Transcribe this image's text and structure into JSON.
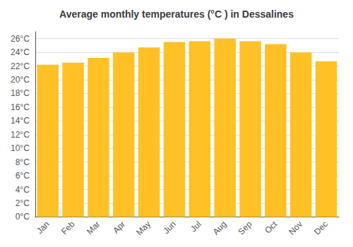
{
  "chart_data": {
    "type": "bar",
    "title": "Average monthly temperatures (°C ) in Dessalines",
    "categories": [
      "Jan",
      "Feb",
      "Mar",
      "Apr",
      "May",
      "Jun",
      "Jul",
      "Aug",
      "Sep",
      "Oct",
      "Nov",
      "Dec"
    ],
    "values": [
      22.2,
      22.5,
      23.2,
      24.0,
      24.7,
      25.5,
      25.6,
      26.0,
      25.6,
      25.2,
      24.0,
      22.7
    ],
    "color": "#FFC125",
    "ylim": [
      0,
      27
    ],
    "yticks": [
      {
        "value": 0,
        "label": "0°C"
      },
      {
        "value": 2,
        "label": "2°C"
      },
      {
        "value": 4,
        "label": "4°C"
      },
      {
        "value": 6,
        "label": "6°C"
      },
      {
        "value": 8,
        "label": "8°C"
      },
      {
        "value": 10,
        "label": "10°C"
      },
      {
        "value": 12,
        "label": "12°C"
      },
      {
        "value": 14,
        "label": "14°C"
      },
      {
        "value": 16,
        "label": "16°C"
      },
      {
        "value": 18,
        "label": "18°C"
      },
      {
        "value": 20,
        "label": "20°C"
      },
      {
        "value": 22,
        "label": "22°C"
      },
      {
        "value": 24,
        "label": "24°C"
      },
      {
        "value": 26,
        "label": "26°C"
      }
    ],
    "grid": true
  }
}
